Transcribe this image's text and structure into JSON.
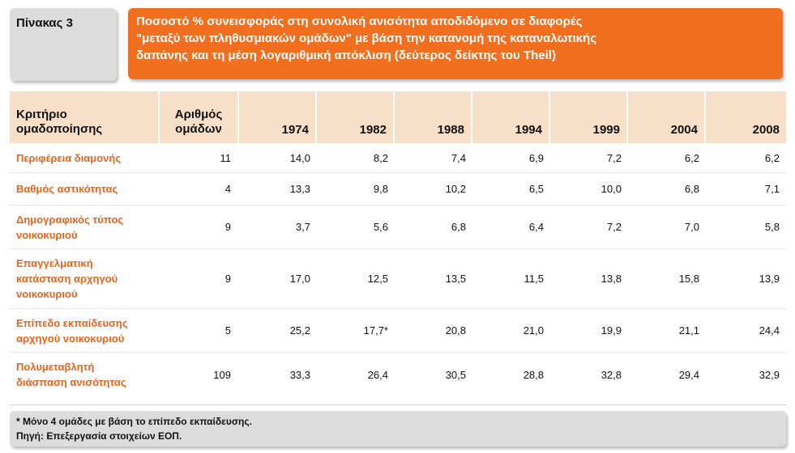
{
  "header": {
    "table_label": "Πίνακας 3",
    "title_line1": "Ποσοστό % συνεισφοράς στη συνολική ανισότητα αποδιδόμενο σε διαφορές",
    "title_line2": "\"μεταξύ των πληθυσμιακών ομάδων\" με βάση την κατανομή της καταναλωτικής",
    "title_line3": "δαπάνης και τη μέση λογαριθμική απόκλιση (δεύτερος δείκτης του Theil)"
  },
  "table": {
    "col_criterion_l1": "Κριτήριο",
    "col_criterion_l2": "ομαδοποίησης",
    "col_groups_l1": "Αριθμός",
    "col_groups_l2": "ομάδων",
    "years": [
      "1974",
      "1982",
      "1988",
      "1994",
      "1999",
      "2004",
      "2008"
    ],
    "rows": [
      {
        "l1": "Περιφέρεια διαμονής",
        "l2": "",
        "l3": "",
        "groups": "11",
        "values": [
          "14,0",
          "8,2",
          "7,4",
          "6,9",
          "7,2",
          "6,2",
          "6,2"
        ]
      },
      {
        "l1": "Βαθμός αστικότητας",
        "l2": "",
        "l3": "",
        "groups": "4",
        "values": [
          "13,3",
          "9,8",
          "10,2",
          "6,5",
          "10,0",
          "6,8",
          "7,1"
        ]
      },
      {
        "l1": "Δημογραφικός τύπος",
        "l2": "νοικοκυριού",
        "l3": "",
        "groups": "9",
        "values": [
          "3,7",
          "5,6",
          "6,8",
          "6,4",
          "7,2",
          "7,0",
          "5,8"
        ]
      },
      {
        "l1": "Επαγγελματική",
        "l2": "κατάσταση αρχηγού",
        "l3": "νοικοκυριού",
        "groups": "9",
        "values": [
          "17,0",
          "12,5",
          "13,5",
          "11,5",
          "13,8",
          "15,8",
          "13,9"
        ]
      },
      {
        "l1": "Επίπεδο εκπαίδευσης",
        "l2": "αρχηγού νοικοκυριού",
        "l3": "",
        "groups": "5",
        "values": [
          "25,2",
          "17,7*",
          "20,8",
          "21,0",
          "19,9",
          "21,1",
          "24,4"
        ]
      },
      {
        "l1": "Πολυμεταβλητή",
        "l2": "διάσπαση ανισότητας",
        "l3": "",
        "groups": "109",
        "values": [
          "33,3",
          "26,4",
          "30,5",
          "28,8",
          "32,8",
          "29,4",
          "32,9"
        ]
      }
    ]
  },
  "notes": {
    "footnote": "* Μόνο 4 ομάδες με βάση το επίπεδο εκπαίδευσης.",
    "source": "Πηγή: Επεξεργασία στοιχείων ΕΟΠ."
  },
  "colors": {
    "accent": "#f26f1f",
    "header_bg": "#f8e0c8",
    "criterion_text": "#e5651c",
    "box_grey": "#dcdcdc"
  }
}
